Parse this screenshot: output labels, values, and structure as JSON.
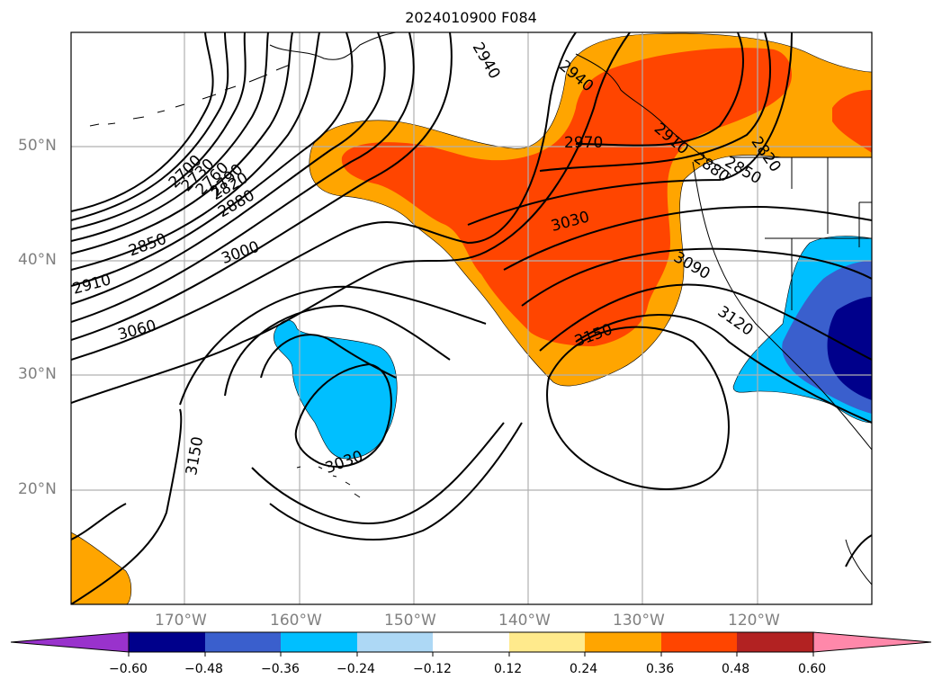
{
  "title": "2024010900 F084",
  "lat_ticks": [
    "50°N",
    "40°N",
    "30°N",
    "20°N"
  ],
  "lon_ticks": [
    "170°W",
    "160°W",
    "150°W",
    "140°W",
    "130°W",
    "120°W"
  ],
  "colorbar": {
    "ticks": [
      "−0.60",
      "−0.48",
      "−0.36",
      "−0.24",
      "−0.12",
      "0.12",
      "0.24",
      "0.36",
      "0.48",
      "0.60"
    ],
    "colors": [
      "#9932cc",
      "#00008b",
      "#3a5fcd",
      "#00bfff",
      "#add8f5",
      "#ffffff",
      "#ffea8c",
      "#ffa500",
      "#ff4500",
      "#b22222",
      "#ff88aa"
    ]
  },
  "contour_labels": [
    "2940",
    "2940",
    "2970",
    "2910",
    "2880",
    "2850",
    "2820",
    "2700",
    "2730",
    "2760",
    "2790",
    "2820",
    "2880",
    "2850",
    "3000",
    "2910",
    "3030",
    "3090",
    "3060",
    "3120",
    "3150",
    "3030",
    "3150"
  ],
  "colors": {
    "grid": "#b0b0b0",
    "contour": "#000000",
    "tick_text": "#808080"
  }
}
